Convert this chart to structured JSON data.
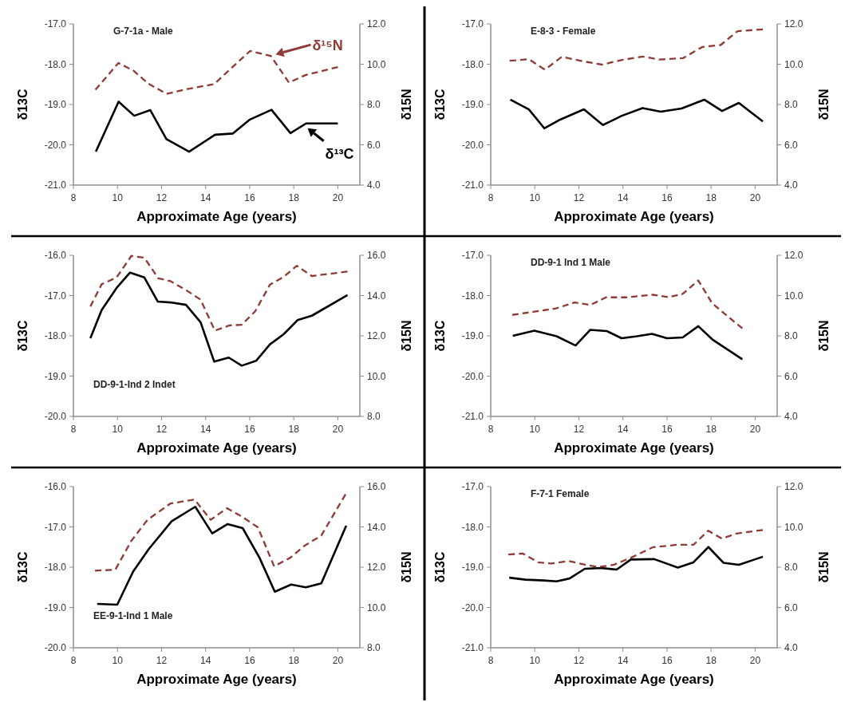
{
  "chart_data": [
    {
      "type": "line",
      "title": "G-7-1a - Male",
      "xlabel": "Approximate Age (years)",
      "ylabel": "δ13C",
      "y2label": "δ15N",
      "xlim": [
        8,
        21
      ],
      "xticks": [
        8,
        10,
        12,
        14,
        16,
        18,
        20
      ],
      "ylim": [
        -21,
        -17
      ],
      "yticks": [
        {
          "value": -21,
          "label": "-21.0"
        },
        {
          "value": -20,
          "label": "-20.0"
        },
        {
          "value": -19,
          "label": "-19.0"
        },
        {
          "value": -18,
          "label": "-18.0"
        },
        {
          "value": -17,
          "label": "-17.0"
        }
      ],
      "y2lim": [
        4,
        12
      ],
      "y2ticks": [
        {
          "value": 4,
          "label": "4.0"
        },
        {
          "value": 6,
          "label": "6.0"
        },
        {
          "value": 8,
          "label": "8.0"
        },
        {
          "value": 10,
          "label": "10.0"
        },
        {
          "value": 12,
          "label": "12.0"
        }
      ],
      "series": [
        {
          "name": "δ¹³C",
          "color": "#000000",
          "line_style": "solid",
          "x": [
            9.02,
            10.05,
            10.76,
            11.49,
            12.22,
            13.25,
            14.43,
            15.24,
            15.99,
            16.99,
            17.85,
            18.56,
            20.0
          ],
          "values": [
            -20.17,
            -18.93,
            -19.28,
            -19.14,
            -19.86,
            -20.17,
            -19.75,
            -19.72,
            -19.38,
            -19.13,
            -19.71,
            -19.47,
            -19.47
          ]
        },
        {
          "name": "δ¹⁵N",
          "color": "#8e3a35",
          "line_style": "dashed",
          "axis": "y2",
          "x": [
            9.0,
            10.04,
            10.73,
            11.4,
            12.22,
            13.17,
            14.39,
            15.09,
            16.02,
            16.96,
            17.78,
            18.53,
            20.0
          ],
          "values": [
            8.73,
            10.06,
            9.68,
            9.04,
            8.53,
            8.77,
            9.01,
            9.73,
            10.66,
            10.41,
            9.09,
            9.46,
            9.86
          ]
        }
      ]
    },
    {
      "type": "line",
      "title": "E-8-3 - Female",
      "xlabel": "Approximate Age (years)",
      "ylabel": "δ13C",
      "y2label": "δ15N",
      "xlim": [
        8,
        21
      ],
      "xticks": [
        8,
        10,
        12,
        14,
        16,
        18,
        20
      ],
      "ylim": [
        -21,
        -17
      ],
      "yticks": [
        {
          "value": -21,
          "label": "-21.0"
        },
        {
          "value": -20,
          "label": "-20.0"
        },
        {
          "value": -19,
          "label": "-19.0"
        },
        {
          "value": -18,
          "label": "-18.0"
        },
        {
          "value": -17,
          "label": "-17.0"
        }
      ],
      "y2lim": [
        4,
        12
      ],
      "y2ticks": [
        {
          "value": 4,
          "label": "4.0"
        },
        {
          "value": 6,
          "label": "6.0"
        },
        {
          "value": 8,
          "label": "8.0"
        },
        {
          "value": 10,
          "label": "10.0"
        },
        {
          "value": 12,
          "label": "12.0"
        }
      ],
      "series": [
        {
          "color": "#000000",
          "line_style": "solid",
          "x": [
            8.89,
            9.73,
            10.43,
            11.17,
            12.23,
            13.09,
            13.95,
            14.89,
            15.72,
            16.66,
            17.69,
            18.5,
            19.26,
            20.35
          ],
          "values": [
            -18.88,
            -19.12,
            -19.59,
            -19.37,
            -19.12,
            -19.51,
            -19.28,
            -19.09,
            -19.18,
            -19.1,
            -18.88,
            -19.16,
            -18.96,
            -19.42
          ]
        },
        {
          "color": "#8e3a35",
          "line_style": "dashed",
          "axis": "y2",
          "x": [
            8.86,
            9.73,
            10.46,
            11.23,
            12.17,
            13.06,
            13.95,
            14.89,
            15.66,
            16.72,
            17.61,
            18.43,
            19.2,
            20.35
          ],
          "values": [
            10.17,
            10.25,
            9.73,
            10.37,
            10.15,
            9.98,
            10.21,
            10.38,
            10.23,
            10.3,
            10.86,
            10.95,
            11.64,
            11.73
          ]
        }
      ]
    },
    {
      "type": "line",
      "title": "DD-9-1-Ind 2  Indet",
      "xlabel": "Approximate Age (years)",
      "ylabel": "δ13C",
      "y2label": "δ15N",
      "xlim": [
        8,
        21
      ],
      "xticks": [
        8,
        10,
        12,
        14,
        16,
        18,
        20
      ],
      "ylim": [
        -20,
        -16
      ],
      "yticks": [
        {
          "value": -20,
          "label": "-20.0"
        },
        {
          "value": -19,
          "label": "-19.0"
        },
        {
          "value": -18,
          "label": "-18.0"
        },
        {
          "value": -17,
          "label": "-17.0"
        },
        {
          "value": -16,
          "label": "-16.0"
        }
      ],
      "y2lim": [
        8,
        16
      ],
      "y2ticks": [
        {
          "value": 8,
          "label": "8.0"
        },
        {
          "value": 10,
          "label": "10.0"
        },
        {
          "value": 12,
          "label": "12.0"
        },
        {
          "value": 14,
          "label": "14.0"
        },
        {
          "value": 16,
          "label": "16.0"
        }
      ],
      "series": [
        {
          "color": "#000000",
          "line_style": "solid",
          "x": [
            8.77,
            9.28,
            9.96,
            10.57,
            11.22,
            11.83,
            12.4,
            13.11,
            13.77,
            14.39,
            15.05,
            15.64,
            16.29,
            16.92,
            17.54,
            18.17,
            18.82,
            20.44
          ],
          "values": [
            -18.06,
            -17.36,
            -16.81,
            -16.43,
            -16.55,
            -17.15,
            -17.17,
            -17.23,
            -17.66,
            -18.64,
            -18.54,
            -18.74,
            -18.62,
            -18.21,
            -17.96,
            -17.61,
            -17.5,
            -16.99
          ]
        },
        {
          "color": "#8e3a35",
          "line_style": "dashed",
          "axis": "y2",
          "x": [
            8.77,
            9.28,
            9.96,
            10.63,
            11.22,
            11.85,
            12.4,
            13.13,
            13.77,
            14.42,
            15.09,
            15.64,
            16.25,
            16.92,
            17.54,
            18.14,
            18.82,
            20.44
          ],
          "values": [
            13.46,
            14.56,
            14.9,
            15.97,
            15.88,
            14.86,
            14.72,
            14.26,
            13.8,
            12.26,
            12.52,
            12.55,
            13.22,
            14.54,
            14.93,
            15.48,
            14.97,
            15.19
          ]
        }
      ]
    },
    {
      "type": "line",
      "title": "DD-9-1 Ind 1  Male",
      "xlabel": "Approximate Age (years)",
      "ylabel": "δ13C",
      "y2label": "δ15N",
      "xlim": [
        8,
        21
      ],
      "xticks": [
        8,
        10,
        12,
        14,
        16,
        18,
        20
      ],
      "ylim": [
        -21,
        -17
      ],
      "yticks": [
        {
          "value": -21,
          "label": "-21.0"
        },
        {
          "value": -20,
          "label": "-20.0"
        },
        {
          "value": -19,
          "label": "-19.0"
        },
        {
          "value": -18,
          "label": "-18.0"
        },
        {
          "value": -17,
          "label": "-17.0"
        }
      ],
      "y2lim": [
        4,
        12
      ],
      "y2ticks": [
        {
          "value": 4,
          "label": "4.0"
        },
        {
          "value": 6,
          "label": "6.0"
        },
        {
          "value": 8,
          "label": "8.0"
        },
        {
          "value": 10,
          "label": "10.0"
        },
        {
          "value": 12,
          "label": "12.0"
        }
      ],
      "series": [
        {
          "color": "#000000",
          "line_style": "solid",
          "x": [
            9.0,
            9.98,
            10.99,
            11.85,
            12.52,
            13.26,
            13.94,
            14.64,
            15.32,
            16.0,
            16.71,
            17.42,
            18.06,
            19.42
          ],
          "values": [
            -19.0,
            -18.87,
            -19.01,
            -19.24,
            -18.85,
            -18.88,
            -19.06,
            -19.01,
            -18.95,
            -19.06,
            -19.04,
            -18.76,
            -19.09,
            -19.58
          ]
        },
        {
          "color": "#8e3a35",
          "line_style": "dashed",
          "axis": "y2",
          "x": [
            8.98,
            9.98,
            10.96,
            11.81,
            12.52,
            13.23,
            14.17,
            15.35,
            16.06,
            16.71,
            17.42,
            18.06,
            19.42
          ],
          "values": [
            9.04,
            9.2,
            9.36,
            9.66,
            9.53,
            9.91,
            9.91,
            10.04,
            9.92,
            10.08,
            10.75,
            9.6,
            8.37
          ]
        }
      ]
    },
    {
      "type": "line",
      "title": "EE-9-1-Ind 1  Male",
      "xlabel": "Approximate Age (years)",
      "ylabel": "δ13C",
      "y2label": "δ15N",
      "xlim": [
        8,
        21
      ],
      "xticks": [
        8,
        10,
        12,
        14,
        16,
        18,
        20
      ],
      "ylim": [
        -20,
        -16
      ],
      "yticks": [
        {
          "value": -20,
          "label": "-20.0"
        },
        {
          "value": -19,
          "label": "-19.0"
        },
        {
          "value": -18,
          "label": "-18.0"
        },
        {
          "value": -17,
          "label": "-17.0"
        },
        {
          "value": -16,
          "label": "-16.0"
        }
      ],
      "y2lim": [
        8,
        16
      ],
      "y2ticks": [
        {
          "value": 8,
          "label": "8.0"
        },
        {
          "value": 10,
          "label": "10.0"
        },
        {
          "value": 12,
          "label": "12.0"
        },
        {
          "value": 14,
          "label": "14.0"
        },
        {
          "value": 16,
          "label": "16.0"
        }
      ],
      "series": [
        {
          "color": "#000000",
          "line_style": "solid",
          "x": [
            9.08,
            9.99,
            10.71,
            11.42,
            12.46,
            13.53,
            14.3,
            15.0,
            15.68,
            16.44,
            17.14,
            17.88,
            18.55,
            19.25,
            20.38
          ],
          "values": [
            -18.91,
            -18.93,
            -18.11,
            -17.55,
            -16.86,
            -16.5,
            -17.16,
            -16.93,
            -17.03,
            -17.76,
            -18.61,
            -18.43,
            -18.5,
            -18.4,
            -16.97
          ]
        },
        {
          "color": "#8e3a35",
          "line_style": "dashed",
          "axis": "y2",
          "x": [
            8.98,
            9.9,
            10.63,
            11.36,
            12.4,
            13.5,
            14.23,
            14.97,
            15.68,
            16.37,
            17.11,
            17.84,
            18.51,
            19.25,
            20.35
          ],
          "values": [
            11.83,
            11.87,
            13.31,
            14.35,
            15.16,
            15.36,
            14.35,
            14.93,
            14.49,
            13.98,
            12.04,
            12.47,
            13.08,
            13.57,
            15.62
          ]
        }
      ]
    },
    {
      "type": "line",
      "title": "F-7-1  Female",
      "xlabel": "Approximate Age (years)",
      "ylabel": "δ13C",
      "y2label": "δ15N",
      "xlim": [
        8,
        21
      ],
      "xticks": [
        8,
        10,
        12,
        14,
        16,
        18,
        20
      ],
      "ylim": [
        -21,
        -17
      ],
      "yticks": [
        {
          "value": -21,
          "label": "-21.0"
        },
        {
          "value": -20,
          "label": "-20.0"
        },
        {
          "value": -19,
          "label": "-19.0"
        },
        {
          "value": -18,
          "label": "-18.0"
        },
        {
          "value": -17,
          "label": "-17.0"
        }
      ],
      "y2lim": [
        4,
        12
      ],
      "y2ticks": [
        {
          "value": 4,
          "label": "4.0"
        },
        {
          "value": 6,
          "label": "6.0"
        },
        {
          "value": 8,
          "label": "8.0"
        },
        {
          "value": 10,
          "label": "10.0"
        },
        {
          "value": 12,
          "label": "12.0"
        }
      ],
      "series": [
        {
          "color": "#000000",
          "line_style": "solid",
          "x": [
            8.84,
            9.57,
            10.4,
            10.99,
            11.58,
            12.27,
            13.0,
            13.71,
            14.36,
            15.42,
            16.49,
            17.2,
            17.88,
            18.56,
            19.26,
            20.35
          ],
          "values": [
            -19.26,
            -19.31,
            -19.33,
            -19.35,
            -19.28,
            -19.04,
            -19.02,
            -19.06,
            -18.81,
            -18.8,
            -19.01,
            -18.88,
            -18.5,
            -18.89,
            -18.94,
            -18.74
          ]
        },
        {
          "color": "#8e3a35",
          "line_style": "dashed",
          "axis": "y2",
          "x": [
            8.8,
            9.45,
            10.16,
            10.75,
            11.52,
            12.29,
            12.88,
            13.59,
            14.42,
            15.36,
            16.43,
            17.2,
            17.87,
            18.5,
            19.15,
            20.35
          ],
          "values": [
            8.63,
            8.68,
            8.24,
            8.18,
            8.31,
            8.12,
            8.01,
            8.12,
            8.5,
            8.99,
            9.11,
            9.11,
            9.81,
            9.42,
            9.67,
            9.85
          ]
        }
      ]
    }
  ]
}
